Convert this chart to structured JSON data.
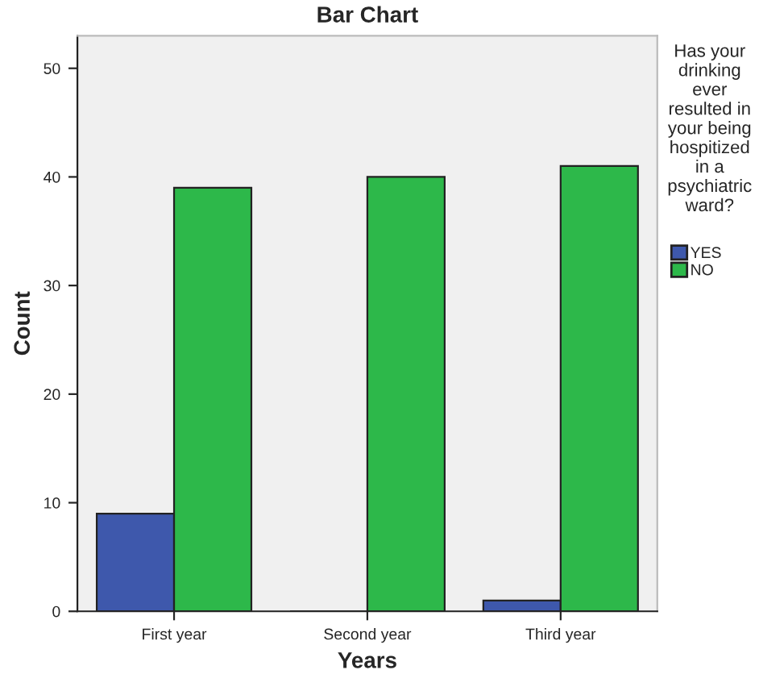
{
  "chart_data": {
    "type": "bar",
    "title": "Bar Chart",
    "xlabel": "Years",
    "ylabel": "Count",
    "legend_title": "Has your drinking ever resulted in your being hospitized in a psychiatric ward?",
    "categories": [
      "First year",
      "Second year",
      "Third year"
    ],
    "series": [
      {
        "name": "YES",
        "color": "#3e58ac",
        "values": [
          9,
          0,
          1
        ]
      },
      {
        "name": "NO",
        "color": "#2db84a",
        "values": [
          39,
          40,
          41
        ]
      }
    ],
    "ylim": [
      0,
      53
    ],
    "yticks": [
      0,
      10,
      20,
      30,
      40,
      50
    ],
    "grid": false,
    "legend": "right"
  }
}
